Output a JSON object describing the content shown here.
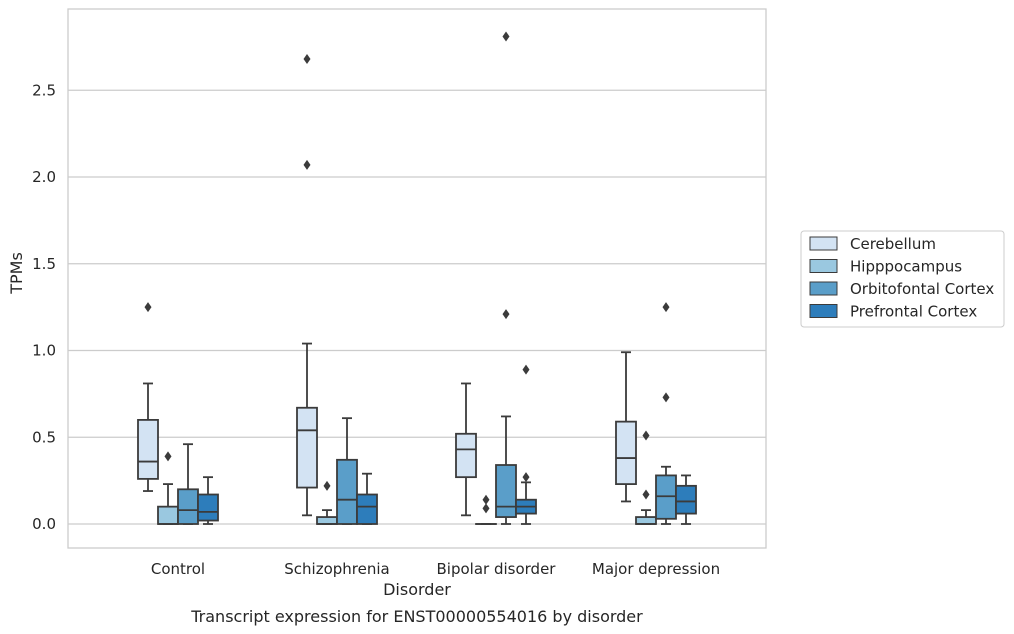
{
  "chart_data": {
    "type": "box",
    "xlabel": "Disorder",
    "ylabel": "TPMs",
    "caption": "Transcript expression for ENST00000554016 by disorder",
    "ylim": [
      -0.135,
      2.95
    ],
    "yticks": [
      0.0,
      0.5,
      1.0,
      1.5,
      2.0,
      2.5
    ],
    "ytick_labels": [
      "0.0",
      "0.5",
      "1.0",
      "1.5",
      "2.0",
      "2.5"
    ],
    "grid": "horizontal",
    "legend_position": "right",
    "categories": [
      "Control",
      "Schizophrenia",
      "Bipolar disorder",
      "Major depression"
    ],
    "series": [
      {
        "name": "Cerebellum",
        "color": "#d3e3f3",
        "boxes": [
          {
            "whislo": 0.19,
            "q1": 0.26,
            "med": 0.36,
            "q3": 0.6,
            "whishi": 0.81,
            "fliers": [
              1.25
            ]
          },
          {
            "whislo": 0.05,
            "q1": 0.21,
            "med": 0.54,
            "q3": 0.67,
            "whishi": 1.04,
            "fliers": [
              2.07,
              2.68
            ]
          },
          {
            "whislo": 0.05,
            "q1": 0.27,
            "med": 0.43,
            "q3": 0.52,
            "whishi": 0.81,
            "fliers": []
          },
          {
            "whislo": 0.13,
            "q1": 0.23,
            "med": 0.38,
            "q3": 0.59,
            "whishi": 0.99,
            "fliers": []
          }
        ]
      },
      {
        "name": "Hipppocampus",
        "color": "#9ac8e0",
        "boxes": [
          {
            "whislo": 0.0,
            "q1": 0.0,
            "med": 0.0,
            "q3": 0.1,
            "whishi": 0.23,
            "fliers": [
              0.39
            ]
          },
          {
            "whislo": 0.0,
            "q1": 0.0,
            "med": 0.0,
            "q3": 0.04,
            "whishi": 0.08,
            "fliers": [
              0.22
            ]
          },
          {
            "whislo": 0.0,
            "q1": 0.0,
            "med": 0.0,
            "q3": 0.0,
            "whishi": 0.0,
            "fliers": [
              0.09,
              0.14
            ]
          },
          {
            "whislo": 0.0,
            "q1": 0.0,
            "med": 0.0,
            "q3": 0.04,
            "whishi": 0.08,
            "fliers": [
              0.17,
              0.51
            ]
          }
        ]
      },
      {
        "name": "Orbitofontal Cortex",
        "color": "#5a9ec9",
        "boxes": [
          {
            "whislo": 0.0,
            "q1": 0.0,
            "med": 0.08,
            "q3": 0.2,
            "whishi": 0.46,
            "fliers": []
          },
          {
            "whislo": 0.0,
            "q1": 0.0,
            "med": 0.14,
            "q3": 0.37,
            "whishi": 0.61,
            "fliers": []
          },
          {
            "whislo": 0.0,
            "q1": 0.04,
            "med": 0.1,
            "q3": 0.34,
            "whishi": 0.62,
            "fliers": [
              1.21,
              2.81
            ]
          },
          {
            "whislo": 0.0,
            "q1": 0.03,
            "med": 0.16,
            "q3": 0.28,
            "whishi": 0.33,
            "fliers": [
              0.73,
              1.25
            ]
          }
        ]
      },
      {
        "name": "Prefrontal Cortex",
        "color": "#2d7dbb",
        "boxes": [
          {
            "whislo": 0.0,
            "q1": 0.02,
            "med": 0.07,
            "q3": 0.17,
            "whishi": 0.27,
            "fliers": []
          },
          {
            "whislo": 0.0,
            "q1": 0.0,
            "med": 0.1,
            "q3": 0.17,
            "whishi": 0.29,
            "fliers": []
          },
          {
            "whislo": 0.0,
            "q1": 0.06,
            "med": 0.1,
            "q3": 0.14,
            "whishi": 0.24,
            "fliers": [
              0.27,
              0.89
            ]
          },
          {
            "whislo": 0.0,
            "q1": 0.06,
            "med": 0.13,
            "q3": 0.22,
            "whishi": 0.28,
            "fliers": []
          }
        ]
      }
    ]
  },
  "style": {
    "edge_color": "#3b3b3b",
    "grid_color": "#cccccc",
    "frame_color": "#cccccc"
  }
}
